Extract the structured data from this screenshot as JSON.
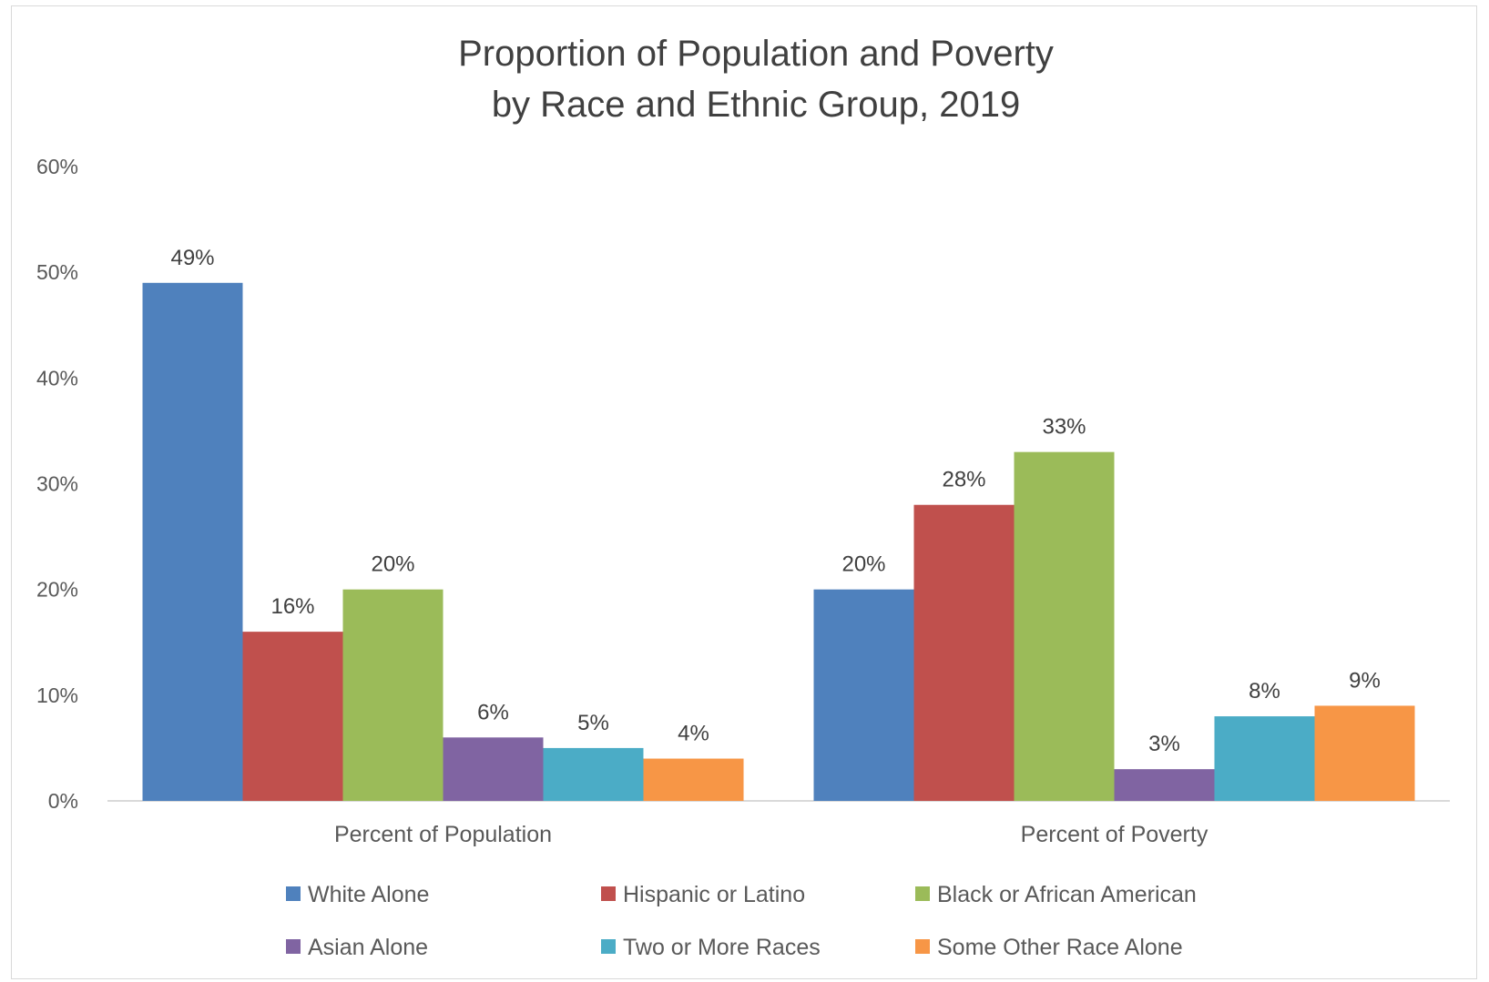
{
  "chart_data": {
    "type": "bar",
    "title": "Proportion of Population and Poverty",
    "subtitle": "by Race and Ethnic Group, 2019",
    "categories": [
      "Percent of Population",
      "Percent of Poverty"
    ],
    "ylim": [
      0,
      60
    ],
    "yticks": [
      "0%",
      "10%",
      "20%",
      "30%",
      "40%",
      "50%",
      "60%"
    ],
    "grid": false,
    "legend_position": "bottom",
    "series": [
      {
        "name": "White Alone",
        "color": "#4f81bd",
        "values": [
          49,
          20
        ],
        "labels": [
          "49%",
          "20%"
        ]
      },
      {
        "name": "Hispanic or Latino",
        "color": "#c0504d",
        "values": [
          16,
          28
        ],
        "labels": [
          "16%",
          "28%"
        ]
      },
      {
        "name": "Black or African American",
        "color": "#9bbb59",
        "values": [
          20,
          33
        ],
        "labels": [
          "20%",
          "33%"
        ]
      },
      {
        "name": "Asian Alone",
        "color": "#8064a2",
        "values": [
          6,
          3
        ],
        "labels": [
          "6%",
          "3%"
        ]
      },
      {
        "name": "Two or More Races",
        "color": "#4bacc6",
        "values": [
          5,
          8
        ],
        "labels": [
          "5%",
          "8%"
        ]
      },
      {
        "name": "Some Other Race Alone",
        "color": "#f79646",
        "values": [
          4,
          9
        ],
        "labels": [
          "4%",
          "9%"
        ]
      }
    ]
  }
}
